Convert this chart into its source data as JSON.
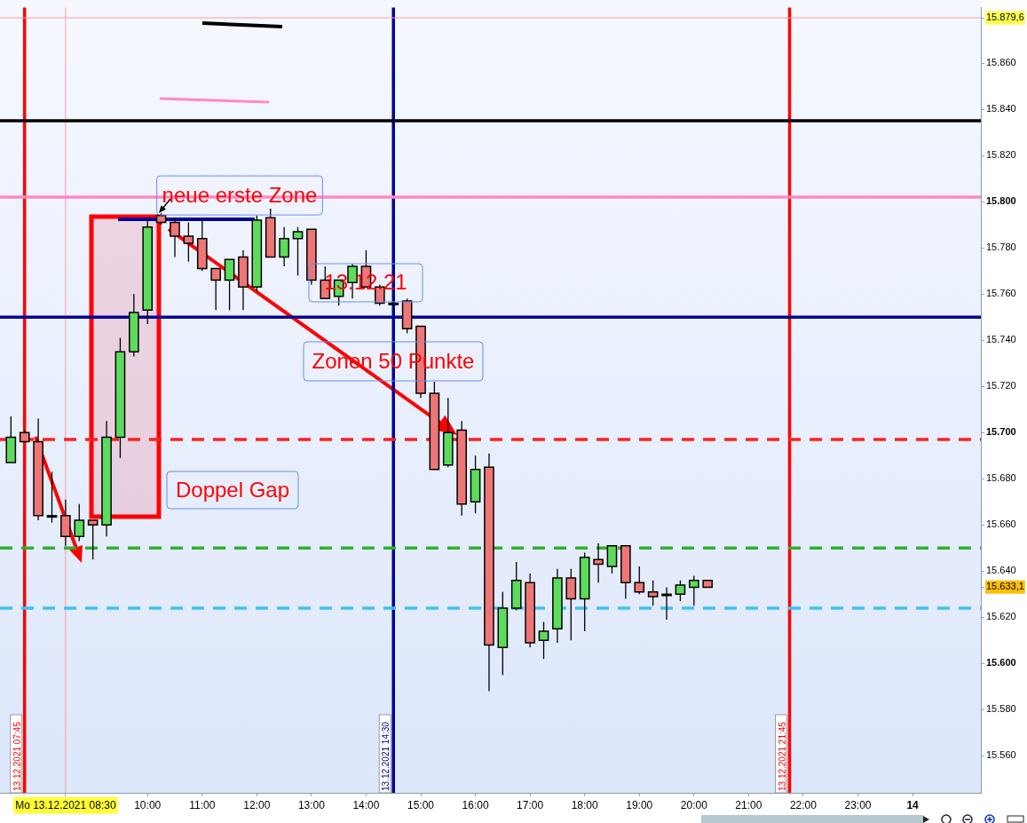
{
  "chart_data": {
    "type": "candlestick",
    "x": [
      "2021-12-13T07:30",
      "2021-12-13T07:45",
      "2021-12-13T08:00",
      "2021-12-13T08:15",
      "2021-12-13T08:30",
      "2021-12-13T08:45",
      "2021-12-13T09:00",
      "2021-12-13T09:15",
      "2021-12-13T09:30",
      "2021-12-13T09:45",
      "2021-12-13T10:00",
      "2021-12-13T10:15",
      "2021-12-13T10:30",
      "2021-12-13T10:45",
      "2021-12-13T11:00",
      "2021-12-13T11:15",
      "2021-12-13T11:30",
      "2021-12-13T11:45",
      "2021-12-13T12:00",
      "2021-12-13T12:15",
      "2021-12-13T12:30",
      "2021-12-13T12:45",
      "2021-12-13T13:00",
      "2021-12-13T13:15",
      "2021-12-13T13:30",
      "2021-12-13T13:45",
      "2021-12-13T14:00",
      "2021-12-13T14:15",
      "2021-12-13T14:30",
      "2021-12-13T14:45",
      "2021-12-13T15:00",
      "2021-12-13T15:15",
      "2021-12-13T15:30",
      "2021-12-13T15:45",
      "2021-12-13T16:00",
      "2021-12-13T16:15",
      "2021-12-13T16:30",
      "2021-12-13T16:45",
      "2021-12-13T17:00",
      "2021-12-13T17:15",
      "2021-12-13T17:30",
      "2021-12-13T17:45",
      "2021-12-13T18:00",
      "2021-12-13T18:15",
      "2021-12-13T18:30",
      "2021-12-13T18:45",
      "2021-12-13T19:00",
      "2021-12-13T19:15",
      "2021-12-13T19:30",
      "2021-12-13T19:45",
      "2021-12-13T20:00",
      "2021-12-13T20:15"
    ],
    "ohlc": [
      [
        15687,
        15707,
        15687,
        15698
      ],
      [
        15700,
        15701,
        15696,
        15696
      ],
      [
        15696,
        15706,
        15662,
        15664
      ],
      [
        15664,
        15683,
        15661,
        15664
      ],
      [
        15664,
        15671,
        15651,
        15655
      ],
      [
        15655,
        15669,
        15653,
        15662
      ],
      [
        15662,
        15662,
        15645,
        15660
      ],
      [
        15660,
        15705,
        15655,
        15698
      ],
      [
        15698,
        15741,
        15689,
        15735
      ],
      [
        15735,
        15760,
        15733,
        15752
      ],
      [
        15753,
        15792,
        15747,
        15789
      ],
      [
        15794,
        15795,
        15790,
        15791
      ],
      [
        15791,
        15793,
        15776,
        15785
      ],
      [
        15785,
        15791,
        15774,
        15782
      ],
      [
        15784,
        15792,
        15770,
        15771
      ],
      [
        15771,
        15771,
        15753,
        15766
      ],
      [
        15766,
        15775,
        15753,
        15775
      ],
      [
        15776,
        15779,
        15753,
        15763
      ],
      [
        15763,
        15794,
        15761,
        15792
      ],
      [
        15793,
        15797,
        15776,
        15776
      ],
      [
        15776,
        15789,
        15772,
        15784
      ],
      [
        15784,
        15789,
        15768,
        15787
      ],
      [
        15788,
        15788,
        15764,
        15766
      ],
      [
        15766,
        15772,
        15758,
        15758
      ],
      [
        15759,
        15766,
        15755,
        15766
      ],
      [
        15765,
        15773,
        15758,
        15772
      ],
      [
        15772,
        15779,
        15763,
        15763
      ],
      [
        15763,
        15764,
        15755,
        15756
      ],
      [
        15756,
        15757,
        15756,
        15756
      ],
      [
        15757,
        15758,
        15743,
        15745
      ],
      [
        15746,
        15746,
        15715,
        15717
      ],
      [
        15717,
        15722,
        15684,
        15684
      ],
      [
        15686,
        15715,
        15685,
        15700
      ],
      [
        15701,
        15705,
        15664,
        15669
      ],
      [
        15670,
        15690,
        15665,
        15684
      ],
      [
        15685,
        15691,
        15588,
        15608
      ],
      [
        15607,
        15631,
        15595,
        15624
      ],
      [
        15624,
        15644,
        15623,
        15636
      ],
      [
        15635,
        15639,
        15607,
        15609
      ],
      [
        15610,
        15618,
        15602,
        15614
      ],
      [
        15615,
        15641,
        15609,
        15637
      ],
      [
        15637,
        15641,
        15610,
        15628
      ],
      [
        15628,
        15648,
        15614,
        15646
      ],
      [
        15645,
        15652,
        15635,
        15643
      ],
      [
        15642,
        15651,
        15639,
        15651
      ],
      [
        15651,
        15651,
        15628,
        15635
      ],
      [
        15635,
        15642,
        15630,
        15631
      ],
      [
        15631,
        15636,
        15625,
        15629
      ],
      [
        15630,
        15633,
        15619,
        15630
      ],
      [
        15630,
        15636,
        15627,
        15634
      ],
      [
        15633,
        15638,
        15625,
        15636
      ],
      [
        15636,
        15636,
        15633,
        15633
      ]
    ],
    "xlim": [
      "2021-12-13T07:18",
      "2021-12-14T01:15"
    ],
    "ylim": [
      15544,
      15884
    ],
    "xticks": [
      {
        "value": "2021-12-13T08:30",
        "label": "Mo 13.12.2021 08:30"
      },
      {
        "value": "2021-12-13T10:00",
        "label": "10:00"
      },
      {
        "value": "2021-12-13T11:00",
        "label": "11:00"
      },
      {
        "value": "2021-12-13T12:00",
        "label": "12:00"
      },
      {
        "value": "2021-12-13T13:00",
        "label": "13:00"
      },
      {
        "value": "2021-12-13T14:00",
        "label": "14:00"
      },
      {
        "value": "2021-12-13T15:00",
        "label": "15:00"
      },
      {
        "value": "2021-12-13T16:00",
        "label": "16:00"
      },
      {
        "value": "2021-12-13T17:00",
        "label": "17:00"
      },
      {
        "value": "2021-12-13T18:00",
        "label": "18:00"
      },
      {
        "value": "2021-12-13T19:00",
        "label": "19:00"
      },
      {
        "value": "2021-12-13T20:00",
        "label": "20:00"
      },
      {
        "value": "2021-12-13T21:00",
        "label": "21:00"
      },
      {
        "value": "2021-12-13T22:00",
        "label": "22:00"
      },
      {
        "value": "2021-12-13T23:00",
        "label": "23:00"
      },
      {
        "value": "2021-12-14",
        "label": "14"
      }
    ],
    "yticks": [
      {
        "value": 15560,
        "label": "15.560"
      },
      {
        "value": 15580,
        "label": "15.580"
      },
      {
        "value": 15600,
        "label": "15.600"
      },
      {
        "value": 15620,
        "label": "15.620"
      },
      {
        "value": 15633.1,
        "label": "15.633,1"
      },
      {
        "value": 15640,
        "label": "15.640"
      },
      {
        "value": 15660,
        "label": "15.660"
      },
      {
        "value": 15680,
        "label": "15.680"
      },
      {
        "value": 15700,
        "label": "15.700"
      },
      {
        "value": 15720,
        "label": "15.720"
      },
      {
        "value": 15740,
        "label": "15.740"
      },
      {
        "value": 15760,
        "label": "15.760"
      },
      {
        "value": 15780,
        "label": "15.780"
      },
      {
        "value": 15800,
        "label": "15.800"
      },
      {
        "value": 15820,
        "label": "15.820"
      },
      {
        "value": 15840,
        "label": "15.840"
      },
      {
        "value": 15860,
        "label": "15.860"
      },
      {
        "value": 15879.6,
        "label": "15.879,6"
      }
    ],
    "ref_lines": [
      {
        "axis": "x",
        "value": "2021-12-13T07:45",
        "label": "13.12.2021 07:45",
        "color": "#ff0000"
      },
      {
        "axis": "x",
        "value": "2021-12-13T14:30",
        "label": "13.12.2021 14:30",
        "color": "#000099"
      },
      {
        "axis": "x",
        "value": "2021-12-13T21:45",
        "label": "13.12.2021 21:45",
        "color": "#ff0000"
      },
      {
        "axis": "x",
        "value": "2021-12-13T08:30",
        "color": "#ff9999"
      },
      {
        "axis": "y",
        "value": 15879.6,
        "color": "#ff9999"
      },
      {
        "axis": "y",
        "value": 15835,
        "color": "#000000"
      },
      {
        "axis": "y",
        "value": 15802,
        "color": "#ff88c8"
      },
      {
        "axis": "y",
        "value": 15750,
        "color": "#000099"
      },
      {
        "axis": "y",
        "value": 15697,
        "color": "#ff2020",
        "line_style": "dashed"
      },
      {
        "axis": "y",
        "value": 15650,
        "color": "#30b030",
        "line_style": "dashed"
      },
      {
        "axis": "y",
        "value": 15624,
        "color": "#40c0f8",
        "line_style": "dashed"
      }
    ],
    "annotations": [
      {
        "text": "neue erste Zone",
        "x": "2021-12-13T10:15",
        "y": 15795
      },
      "13.12.21",
      "Zonen 50 Punkte",
      "Doppel Gap"
    ],
    "grid": false,
    "legend": false
  }
}
